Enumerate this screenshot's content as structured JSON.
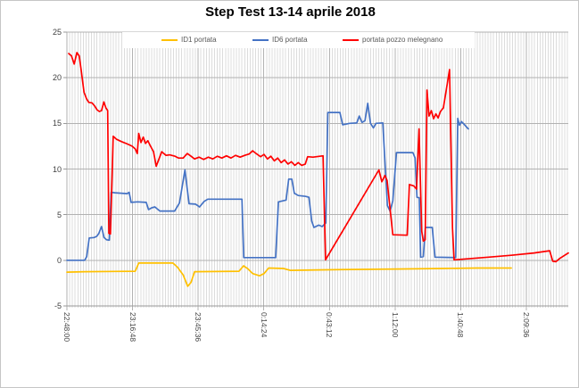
{
  "window": {
    "frame_border": "#c6c6c6",
    "background": "#ffffff"
  },
  "text_colors": {
    "title": "#000000",
    "axis_labels": "#404040",
    "legend": "#595959"
  },
  "chart_data": {
    "type": "line",
    "title": "Step Test 13-14 aprile 2018",
    "legend_position": "top",
    "grid": {
      "minor_color": "#dcdcdc",
      "major_color": "#b2b2b2",
      "axis_color": "#9a9a9a",
      "minor_step_minutes": 1.2
    },
    "x_axis": {
      "unit": "time h:mm:ss (minutes after 22:48:00)",
      "range_minutes": [
        0,
        220
      ],
      "ticks": [
        {
          "t": 0,
          "label": "22:48:00"
        },
        {
          "t": 28.8,
          "label": "23:16:48"
        },
        {
          "t": 57.6,
          "label": "23:45:36"
        },
        {
          "t": 86.4,
          "label": "0:14:24"
        },
        {
          "t": 115.2,
          "label": "0:43:12"
        },
        {
          "t": 144,
          "label": "1:12:00"
        },
        {
          "t": 172.8,
          "label": "1:40:48"
        },
        {
          "t": 201.6,
          "label": "2:09:36"
        }
      ]
    },
    "y_axis": {
      "min": -5,
      "max": 25,
      "step": 5,
      "ticks": [
        {
          "v": 25,
          "label": "25"
        },
        {
          "v": 20,
          "label": "20"
        },
        {
          "v": 15,
          "label": "15"
        },
        {
          "v": 10,
          "label": "10"
        },
        {
          "v": 5,
          "label": "5"
        },
        {
          "v": 0,
          "label": "0"
        },
        {
          "v": -5,
          "label": "-5"
        }
      ]
    },
    "series": [
      {
        "name": "ID1 portata",
        "color": "#FFC000",
        "points": [
          [
            0,
            -1.3
          ],
          [
            8,
            -1.25
          ],
          [
            30,
            -1.2
          ],
          [
            31.5,
            -0.3
          ],
          [
            46.5,
            -0.3
          ],
          [
            48.5,
            -0.75
          ],
          [
            51,
            -1.6
          ],
          [
            53,
            -2.85
          ],
          [
            54.5,
            -2.4
          ],
          [
            56,
            -1.25
          ],
          [
            75.5,
            -1.2
          ],
          [
            77.5,
            -0.6
          ],
          [
            79.5,
            -0.95
          ],
          [
            81.5,
            -1.45
          ],
          [
            84.5,
            -1.7
          ],
          [
            86.5,
            -1.45
          ],
          [
            88.5,
            -0.85
          ],
          [
            95,
            -0.9
          ],
          [
            98,
            -1.1
          ],
          [
            110,
            -1.05
          ],
          [
            125,
            -1.0
          ],
          [
            145,
            -0.95
          ],
          [
            165,
            -0.9
          ],
          [
            180,
            -0.85
          ],
          [
            195,
            -0.85
          ]
        ]
      },
      {
        "name": "ID6 portata",
        "color": "#4472C4",
        "points": [
          [
            0,
            0
          ],
          [
            7.8,
            0
          ],
          [
            8.7,
            0.4
          ],
          [
            9.8,
            2.45
          ],
          [
            12,
            2.5
          ],
          [
            13.2,
            2.65
          ],
          [
            14,
            2.95
          ],
          [
            15.2,
            3.7
          ],
          [
            16.3,
            2.5
          ],
          [
            17.4,
            2.25
          ],
          [
            18.6,
            2.2
          ],
          [
            19.4,
            7.45
          ],
          [
            21,
            7.4
          ],
          [
            26.5,
            7.3
          ],
          [
            27.3,
            7.45
          ],
          [
            28.2,
            6.35
          ],
          [
            31,
            6.4
          ],
          [
            34.8,
            6.35
          ],
          [
            35.8,
            5.55
          ],
          [
            37.2,
            5.75
          ],
          [
            38.6,
            5.85
          ],
          [
            40.8,
            5.4
          ],
          [
            47.3,
            5.4
          ],
          [
            49.4,
            6.3
          ],
          [
            51.8,
            9.9
          ],
          [
            52.8,
            7.8
          ],
          [
            53.6,
            6.2
          ],
          [
            56.5,
            6.15
          ],
          [
            58.2,
            5.85
          ],
          [
            60.2,
            6.45
          ],
          [
            61.8,
            6.7
          ],
          [
            76.8,
            6.7
          ],
          [
            77.6,
            0.3
          ],
          [
            91.6,
            0.3
          ],
          [
            92.8,
            6.4
          ],
          [
            94.5,
            6.5
          ],
          [
            96.2,
            6.6
          ],
          [
            97.3,
            8.9
          ],
          [
            98.7,
            8.9
          ],
          [
            99.8,
            7.35
          ],
          [
            101.5,
            7.1
          ],
          [
            104.8,
            7.0
          ],
          [
            106.2,
            6.9
          ],
          [
            107.4,
            4.3
          ],
          [
            108.4,
            3.6
          ],
          [
            110.5,
            3.85
          ],
          [
            112,
            3.7
          ],
          [
            113.6,
            4.1
          ],
          [
            114.5,
            16.2
          ],
          [
            119.8,
            16.2
          ],
          [
            121,
            14.85
          ],
          [
            124,
            15.0
          ],
          [
            127.2,
            15.05
          ],
          [
            128.3,
            15.8
          ],
          [
            129.5,
            15.1
          ],
          [
            130.8,
            15.3
          ],
          [
            132,
            17.2
          ],
          [
            133.2,
            15.0
          ],
          [
            134.5,
            14.5
          ],
          [
            135.6,
            15.0
          ],
          [
            138.6,
            15.05
          ],
          [
            140.6,
            6.0
          ],
          [
            141.8,
            5.4
          ],
          [
            143,
            6.5
          ],
          [
            144.6,
            11.8
          ],
          [
            151.8,
            11.8
          ],
          [
            152.8,
            11.2
          ],
          [
            153.6,
            6.9
          ],
          [
            154.6,
            6.85
          ],
          [
            155.2,
            0.35
          ],
          [
            156.4,
            0.4
          ],
          [
            157.3,
            3.6
          ],
          [
            160.3,
            3.6
          ],
          [
            161.5,
            0.35
          ],
          [
            170.6,
            0.3
          ],
          [
            171.5,
            15.55
          ],
          [
            172.3,
            14.8
          ],
          [
            173.1,
            15.2
          ],
          [
            174.3,
            14.9
          ],
          [
            176.1,
            14.4
          ]
        ]
      },
      {
        "name": "portata pozzo melegnano",
        "color": "#FF0000",
        "points": [
          [
            0.8,
            22.65
          ],
          [
            2,
            22.4
          ],
          [
            3.2,
            21.5
          ],
          [
            4.4,
            22.75
          ],
          [
            5.4,
            22.4
          ],
          [
            6.4,
            20.6
          ],
          [
            7.5,
            18.4
          ],
          [
            8.6,
            17.7
          ],
          [
            9.6,
            17.3
          ],
          [
            11,
            17.25
          ],
          [
            12.2,
            16.9
          ],
          [
            13.2,
            16.5
          ],
          [
            14.2,
            16.3
          ],
          [
            15.2,
            16.4
          ],
          [
            16.2,
            17.35
          ],
          [
            17.1,
            16.7
          ],
          [
            17.9,
            16.4
          ],
          [
            18.4,
            2.95
          ],
          [
            19.1,
            2.9
          ],
          [
            20.3,
            13.6
          ],
          [
            21.8,
            13.25
          ],
          [
            24,
            13.0
          ],
          [
            26.5,
            12.75
          ],
          [
            28.6,
            12.5
          ],
          [
            30,
            12.2
          ],
          [
            30.9,
            11.7
          ],
          [
            31.5,
            13.9
          ],
          [
            32.5,
            12.9
          ],
          [
            33.5,
            13.5
          ],
          [
            34.5,
            12.8
          ],
          [
            35.5,
            13.1
          ],
          [
            36.5,
            12.6
          ],
          [
            38,
            11.9
          ],
          [
            39.2,
            10.3
          ],
          [
            41.6,
            11.9
          ],
          [
            43.5,
            11.5
          ],
          [
            45,
            11.55
          ],
          [
            47.5,
            11.4
          ],
          [
            49,
            11.2
          ],
          [
            51,
            11.2
          ],
          [
            52.8,
            11.7
          ],
          [
            54.5,
            11.4
          ],
          [
            56,
            11.1
          ],
          [
            58,
            11.3
          ],
          [
            60,
            11.05
          ],
          [
            62,
            11.3
          ],
          [
            64,
            11.1
          ],
          [
            66,
            11.4
          ],
          [
            68,
            11.2
          ],
          [
            70,
            11.45
          ],
          [
            72,
            11.2
          ],
          [
            74,
            11.5
          ],
          [
            76,
            11.3
          ],
          [
            78,
            11.5
          ],
          [
            80,
            11.65
          ],
          [
            81.5,
            12.0
          ],
          [
            83,
            11.7
          ],
          [
            85,
            11.35
          ],
          [
            86.5,
            11.6
          ],
          [
            88,
            11.1
          ],
          [
            89.5,
            11.4
          ],
          [
            91,
            10.9
          ],
          [
            92.5,
            11.2
          ],
          [
            94,
            10.7
          ],
          [
            95.5,
            11.0
          ],
          [
            97,
            10.55
          ],
          [
            98.5,
            10.8
          ],
          [
            100,
            10.4
          ],
          [
            101.5,
            10.7
          ],
          [
            103,
            10.4
          ],
          [
            104.6,
            10.55
          ],
          [
            105.6,
            11.35
          ],
          [
            108,
            11.3
          ],
          [
            112.4,
            11.45
          ],
          [
            113.5,
            0.05
          ],
          [
            136.9,
            9.9
          ],
          [
            138.2,
            8.6
          ],
          [
            139.5,
            9.3
          ],
          [
            140.5,
            8.75
          ],
          [
            143,
            2.8
          ],
          [
            149.3,
            2.75
          ],
          [
            150.3,
            8.3
          ],
          [
            152.2,
            8.15
          ],
          [
            153.4,
            7.8
          ],
          [
            154.5,
            14.4
          ],
          [
            155.7,
            3.2
          ],
          [
            156.4,
            2.1
          ],
          [
            157.2,
            2.25
          ],
          [
            158,
            18.65
          ],
          [
            158.9,
            15.8
          ],
          [
            159.9,
            16.4
          ],
          [
            160.9,
            15.5
          ],
          [
            161.9,
            16.05
          ],
          [
            162.9,
            15.6
          ],
          [
            163.9,
            16.3
          ],
          [
            165.2,
            16.7
          ],
          [
            167.9,
            20.9
          ],
          [
            169.2,
            3.5
          ],
          [
            169.9,
            0.05
          ],
          [
            175,
            0.15
          ],
          [
            185,
            0.35
          ],
          [
            195,
            0.55
          ],
          [
            205,
            0.8
          ],
          [
            211.8,
            1.05
          ],
          [
            213.2,
            -0.1
          ],
          [
            214.6,
            -0.15
          ],
          [
            216.2,
            0.2
          ],
          [
            220,
            0.8
          ]
        ]
      }
    ]
  }
}
